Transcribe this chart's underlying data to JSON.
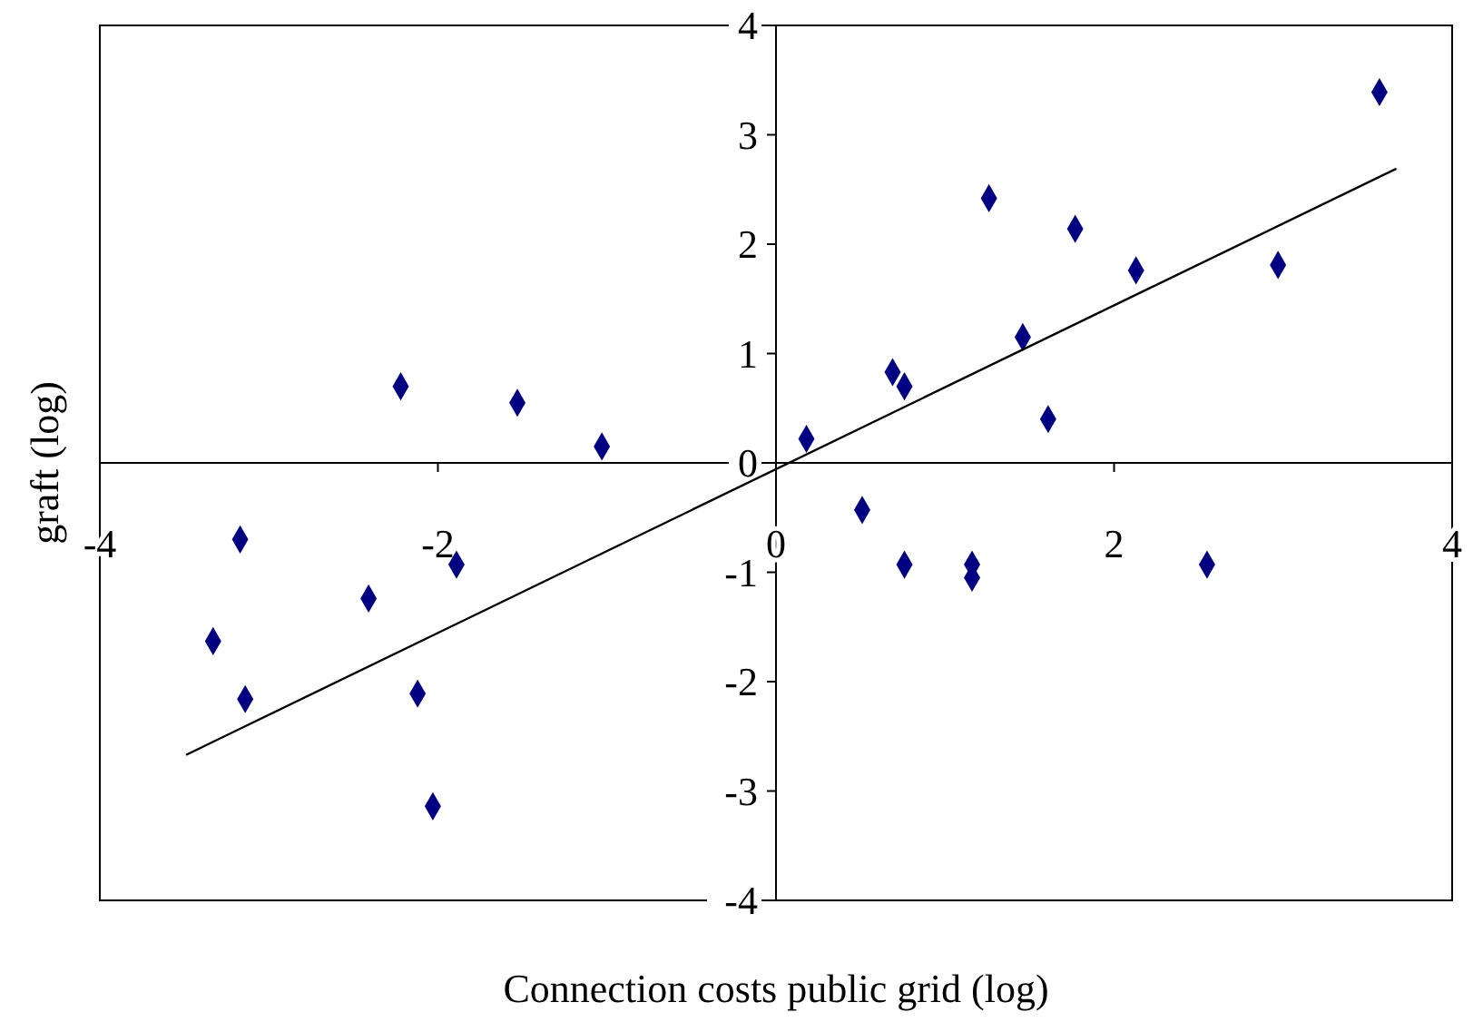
{
  "chart_data": {
    "type": "scatter",
    "xlabel": "Connection costs public grid (log)",
    "ylabel": "graft (log)",
    "xlim": [
      -4,
      4
    ],
    "ylim": [
      -4,
      4
    ],
    "xticks": [
      -4,
      -2,
      0,
      2,
      4
    ],
    "yticks": [
      -4,
      -3,
      -2,
      -1,
      0,
      1,
      2,
      3,
      4
    ],
    "grid": false,
    "series": [
      {
        "marker": "diamond",
        "color": "#000080",
        "x": [
          3.57,
          1.26,
          1.77,
          2.13,
          2.97,
          1.46,
          0.69,
          0.76,
          1.61,
          0.18,
          0.51,
          0.76,
          1.16,
          1.16,
          2.55,
          -2.22,
          -1.53,
          -1.03,
          -3.17,
          -1.89,
          -2.41,
          -3.33,
          -3.14,
          -2.12,
          -2.03
        ],
        "values": [
          3.39,
          2.42,
          2.14,
          1.76,
          1.81,
          1.15,
          0.83,
          0.7,
          0.4,
          0.22,
          -0.43,
          -0.93,
          -0.93,
          -1.05,
          -0.93,
          0.7,
          0.55,
          0.15,
          -0.7,
          -0.93,
          -1.24,
          -1.63,
          -2.16,
          -2.11,
          -3.14
        ]
      },
      {
        "type": "line",
        "color": "#000000",
        "line_style": "solid",
        "x": [
          -3.49,
          3.67
        ],
        "values": [
          -2.67,
          2.69
        ]
      }
    ]
  }
}
